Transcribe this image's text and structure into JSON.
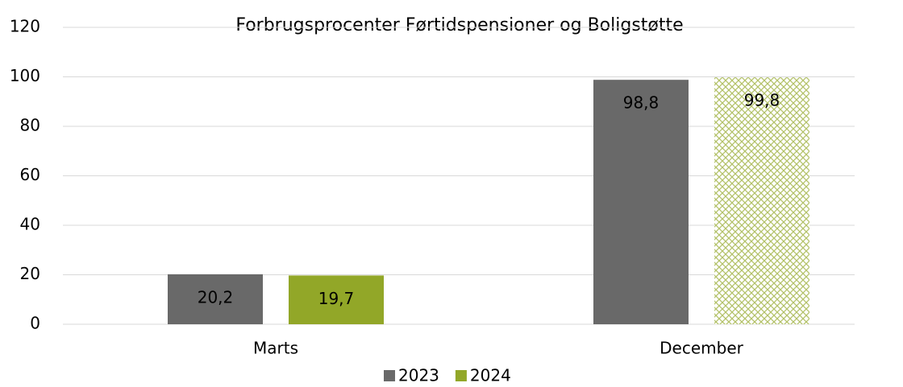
{
  "chart_data": {
    "type": "bar",
    "title": "Forbrugsprocenter Førtidspensioner og Boligstøtte",
    "categories": [
      "Marts",
      "December"
    ],
    "series": [
      {
        "name": "2023",
        "color": "#696969",
        "values": [
          20.2,
          98.8
        ],
        "value_labels": [
          "20,2",
          "98,8"
        ],
        "patterns": [
          "solid",
          "solid"
        ]
      },
      {
        "name": "2024",
        "color": "#92a728",
        "values": [
          19.7,
          99.8
        ],
        "value_labels": [
          "19,7",
          "99,8"
        ],
        "patterns": [
          "solid",
          "crosshatch"
        ]
      }
    ],
    "ylim": [
      0,
      120
    ],
    "yticks": [
      0,
      20,
      40,
      60,
      80,
      100,
      120
    ],
    "grid": true,
    "legend": "bottom"
  }
}
